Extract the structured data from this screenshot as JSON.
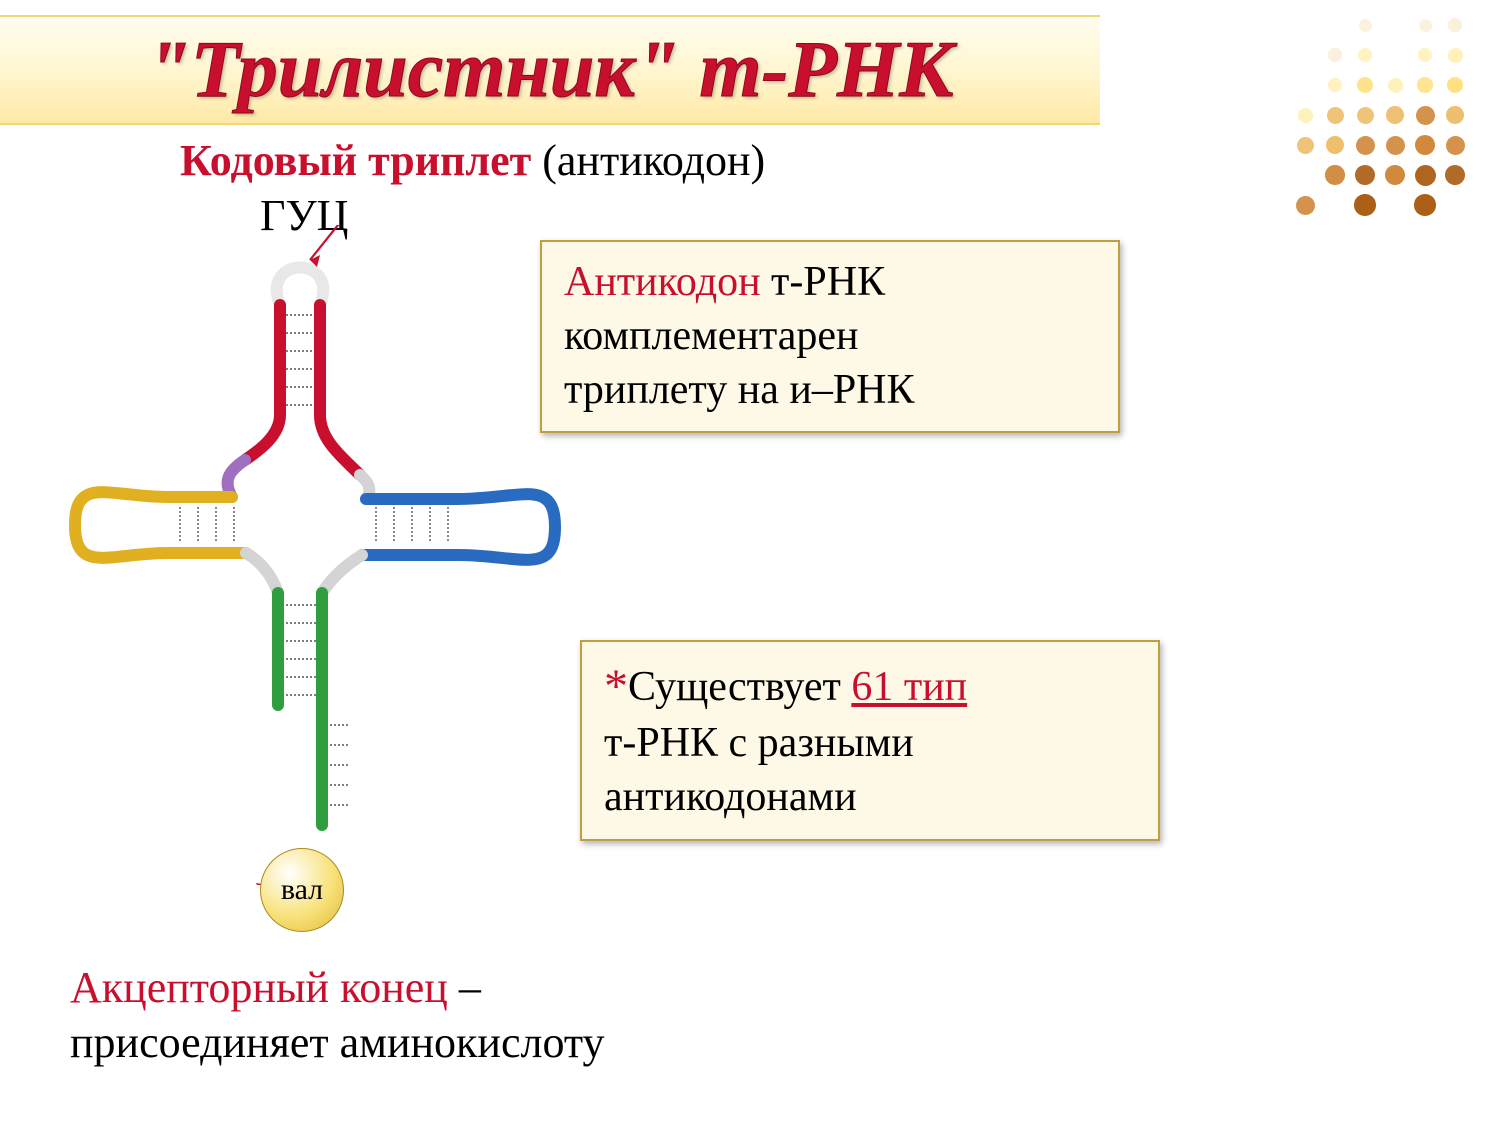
{
  "title": "\"Трилистник\" т-РНК",
  "subtitle_red": "Кодовый  триплет",
  "subtitle_paren": "(антикодон)",
  "guc_label": "ГУЦ",
  "box1": {
    "red": "Антикодон",
    "rest1": " т-РНК",
    "line2": "комплементарен",
    "line3": "триплету на и–РНК"
  },
  "box2": {
    "star": "*",
    "pre": "Существует ",
    "hl": "61 тип",
    "line2": "т-РНК с разными",
    "line3": "антикодонами"
  },
  "val_label": "вал",
  "acceptor_red": "Акцепторный конец",
  "acceptor_dash": " –",
  "acceptor_line2": "присоединяет аминокислоту",
  "style": {
    "title_bg_top": "#fffdf0",
    "title_bg_bottom": "#ffe9a8",
    "title_color": "#c8102e",
    "box_bg": "#fdf9e6",
    "box_border": "#bfa040",
    "red": "#c8102e",
    "black": "#000000",
    "font_title_pt": 80,
    "font_body_pt": 44,
    "font_box_pt": 42,
    "font_val_pt": 30
  },
  "strand_colors": {
    "top_white": "#e8e8e8",
    "top_red": "#c8102e",
    "left_yellow": "#e0b020",
    "right_blue": "#2a6bc2",
    "bottom_green": "#2e9e3f",
    "violet_link": "#a070c0",
    "grey_fill": "#d4d4d4"
  },
  "strand_width": 12,
  "bp_color": "#555555",
  "arrow_color": "#c8102e",
  "dot_grid": {
    "cols": 6,
    "rows": 7,
    "spacing": 30,
    "size_min": 12,
    "size_max": 22,
    "colors": [
      "#f5deb3",
      "#ffe680",
      "#ffd040",
      "#e8a838",
      "#c97820",
      "#a85a10"
    ],
    "visible": [
      [
        0,
        0,
        0.1,
        0,
        0.1,
        0.15
      ],
      [
        0,
        0.15,
        0.2,
        0,
        0.2,
        0.3
      ],
      [
        0,
        0.25,
        0.4,
        0.3,
        0.35,
        0.45
      ],
      [
        0.3,
        0.5,
        0.5,
        0.55,
        0.7,
        0.6
      ],
      [
        0.5,
        0.6,
        0.7,
        0.7,
        0.8,
        0.7
      ],
      [
        0,
        0.75,
        0.85,
        0.8,
        0.9,
        0.85
      ],
      [
        0.7,
        0,
        0.95,
        0,
        0.95,
        0
      ]
    ]
  }
}
